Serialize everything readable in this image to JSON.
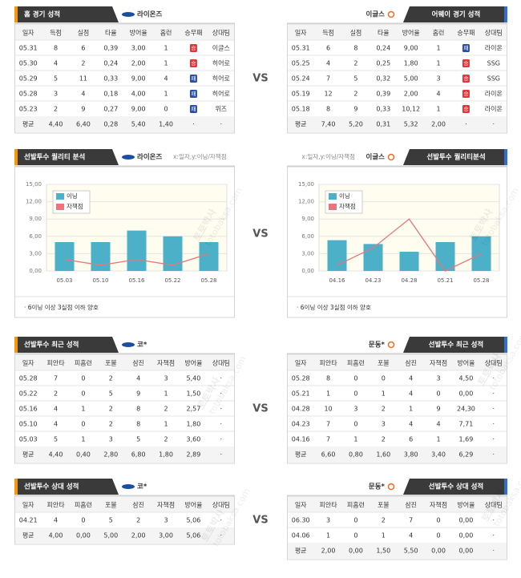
{
  "vs_label": "VS",
  "watermark": {
    "name": "토토박사",
    "site": "totobaksa.com"
  },
  "badge_colors": {
    "승": "#e2363c",
    "패": "#2c4fa6"
  },
  "tables": [
    {
      "left": {
        "title": "홈 경기 성적",
        "team": "라이온즈",
        "columns": [
          "일자",
          "득점",
          "실점",
          "타율",
          "방어율",
          "홈런",
          "승무패",
          "상대팀"
        ],
        "rows": [
          [
            "05.31",
            "8",
            "6",
            "0,39",
            "3,00",
            "1",
            "승",
            "이글스"
          ],
          [
            "05.30",
            "4",
            "2",
            "0,24",
            "2,00",
            "1",
            "승",
            "히어로"
          ],
          [
            "05.29",
            "5",
            "11",
            "0,33",
            "9,00",
            "4",
            "패",
            "히어로"
          ],
          [
            "05.28",
            "3",
            "4",
            "0,18",
            "4,00",
            "1",
            "패",
            "히어로"
          ],
          [
            "05.23",
            "2",
            "9",
            "0,27",
            "9,00",
            "0",
            "패",
            "위즈"
          ]
        ],
        "average": [
          "평균",
          "4,40",
          "6,40",
          "0,28",
          "5,40",
          "1,40",
          "·",
          "·"
        ]
      },
      "right": {
        "title": "어웨이 경기 성적",
        "team": "이글스",
        "columns": [
          "일자",
          "득점",
          "실점",
          "타율",
          "방어율",
          "홈런",
          "승무패",
          "상대팀"
        ],
        "rows": [
          [
            "05.31",
            "6",
            "8",
            "0,24",
            "9,00",
            "1",
            "패",
            "라이온"
          ],
          [
            "05.25",
            "4",
            "2",
            "0,25",
            "1,80",
            "1",
            "승",
            "SSG"
          ],
          [
            "05.24",
            "7",
            "5",
            "0,32",
            "5,00",
            "3",
            "승",
            "SSG"
          ],
          [
            "05.19",
            "12",
            "2",
            "0,39",
            "2,00",
            "4",
            "승",
            "라이온"
          ],
          [
            "05.18",
            "8",
            "9",
            "0,33",
            "10,12",
            "1",
            "승",
            "라이온"
          ]
        ],
        "average": [
          "평균",
          "7,40",
          "5,20",
          "0,31",
          "5,32",
          "2,00",
          "·",
          "·"
        ]
      }
    },
    {
      "left": {
        "title": "선발투수 최근 성적",
        "team": "코*",
        "columns": [
          "일자",
          "피안타",
          "피홈런",
          "포볼",
          "삼진",
          "자책점",
          "방어율",
          "상대팀"
        ],
        "rows": [
          [
            "05.28",
            "7",
            "0",
            "2",
            "4",
            "3",
            "5,40",
            "·"
          ],
          [
            "05.22",
            "2",
            "0",
            "5",
            "9",
            "1",
            "1,50",
            "·"
          ],
          [
            "05.16",
            "4",
            "1",
            "2",
            "8",
            "2",
            "2,57",
            "·"
          ],
          [
            "05.10",
            "4",
            "0",
            "2",
            "8",
            "1",
            "1,80",
            "·"
          ],
          [
            "05.03",
            "5",
            "1",
            "3",
            "5",
            "2",
            "3,60",
            "·"
          ]
        ],
        "average": [
          "평균",
          "4,40",
          "0,40",
          "2,80",
          "6,80",
          "1,80",
          "2,89",
          "·"
        ]
      },
      "right": {
        "title": "선발투수 최근 성적",
        "team": "문동*",
        "columns": [
          "일자",
          "피안타",
          "피홈런",
          "포볼",
          "삼진",
          "자책점",
          "방어율",
          "상대팀"
        ],
        "rows": [
          [
            "05.28",
            "8",
            "0",
            "0",
            "4",
            "3",
            "4,50",
            "·"
          ],
          [
            "05.21",
            "1",
            "0",
            "1",
            "4",
            "0",
            "0,00",
            "·"
          ],
          [
            "04.28",
            "10",
            "3",
            "2",
            "1",
            "9",
            "24,30",
            "·"
          ],
          [
            "04.23",
            "7",
            "0",
            "3",
            "4",
            "4",
            "7,71",
            "·"
          ],
          [
            "04.16",
            "7",
            "1",
            "2",
            "6",
            "1",
            "1,69",
            "·"
          ]
        ],
        "average": [
          "평균",
          "6,60",
          "0,80",
          "1,60",
          "3,80",
          "3,40",
          "6,29",
          "·"
        ]
      }
    },
    {
      "left": {
        "title": "선발투수 상대 성적",
        "team": "코*",
        "columns": [
          "일자",
          "피안타",
          "피홈런",
          "포볼",
          "삼진",
          "자책점",
          "방어율",
          "상대팀"
        ],
        "rows": [
          [
            "04.21",
            "4",
            "0",
            "5",
            "2",
            "3",
            "5,06",
            "·"
          ]
        ],
        "average": [
          "평균",
          "4,00",
          "0,00",
          "5,00",
          "2,00",
          "3,00",
          "5,06",
          "·"
        ]
      },
      "right": {
        "title": "선발투수 상대 성적",
        "team": "문동*",
        "columns": [
          "일자",
          "피안타",
          "피홈런",
          "포볼",
          "삼진",
          "자책점",
          "방어율",
          "상대팀"
        ],
        "rows": [
          [
            "06.30",
            "3",
            "0",
            "2",
            "7",
            "0",
            "0,00",
            "·"
          ],
          [
            "04.06",
            "1",
            "0",
            "1",
            "4",
            "0",
            "0,00",
            "·"
          ]
        ],
        "average": [
          "평균",
          "2,00",
          "0,00",
          "1,50",
          "5,50",
          "0,00",
          "0,00",
          "·"
        ]
      }
    }
  ],
  "chart_data": [
    {
      "type": "bar",
      "title": "선발투수 퀄리티 분석",
      "team": "라이온즈",
      "note": "x:일자,y:이닝/자책점",
      "categories": [
        "05.03",
        "05.10",
        "05.16",
        "05.22",
        "05.28"
      ],
      "series": [
        {
          "name": "이닝",
          "color": "#4bb0c8",
          "values": [
            5,
            5,
            7,
            6,
            5
          ]
        },
        {
          "name": "자책점",
          "color": "#e8767a",
          "type": "line",
          "values": [
            2,
            1,
            2,
            1,
            3
          ]
        }
      ],
      "ylim": [
        0,
        15
      ],
      "yticks": [
        {
          "value": 0,
          "label": "0,00"
        },
        {
          "value": 3,
          "label": "3,00"
        },
        {
          "value": 6,
          "label": "6,00"
        },
        {
          "value": 9,
          "label": "9,00"
        },
        {
          "value": 12,
          "label": "12,00"
        },
        {
          "value": 15,
          "label": "15,00"
        }
      ],
      "grid": true,
      "footnote": "· 6이닝 이상 3실점 이하 양호"
    },
    {
      "type": "bar",
      "title": "선발투수 퀄리티분석",
      "team": "이글스",
      "note": "x:일자,y:이닝/자책점",
      "categories": [
        "04.16",
        "04.23",
        "04.28",
        "05.21",
        "05.28"
      ],
      "series": [
        {
          "name": "이닝",
          "color": "#4bb0c8",
          "values": [
            5.33,
            4.67,
            3.33,
            5,
            6
          ]
        },
        {
          "name": "자책점",
          "color": "#e8767a",
          "type": "line",
          "values": [
            1,
            4,
            9,
            0,
            3
          ]
        }
      ],
      "ylim": [
        0,
        15
      ],
      "yticks": [
        {
          "value": 0,
          "label": "0,00"
        },
        {
          "value": 3,
          "label": "3,00"
        },
        {
          "value": 6,
          "label": "6,00"
        },
        {
          "value": 9,
          "label": "9,00"
        },
        {
          "value": 12,
          "label": "12,00"
        },
        {
          "value": 15,
          "label": "15,00"
        }
      ],
      "grid": true,
      "footnote": "· 6이닝 이상 3실점 이하 양호"
    }
  ]
}
